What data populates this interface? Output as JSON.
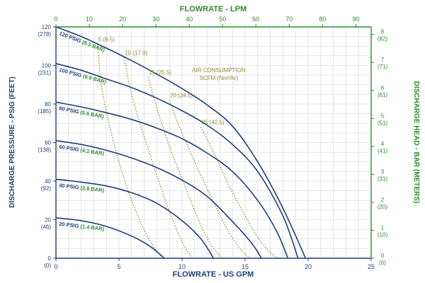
{
  "colors": {
    "navy": "#1f3f7a",
    "green": "#2e8b2e",
    "olive": "#8c8a2e",
    "grid": "#cfd3da",
    "axis": "#1f3f7a"
  },
  "chart_data": {
    "type": "line",
    "title": "",
    "x_bottom": {
      "label": "FLOWRATE - US GPM",
      "range": [
        0,
        25
      ],
      "ticks": [
        0,
        5,
        10,
        15,
        20,
        25
      ]
    },
    "x_top": {
      "label": "FLOWRATE - LPM",
      "range": [
        0,
        94.6
      ],
      "ticks": [
        0,
        10,
        20,
        30,
        40,
        50,
        60,
        70,
        80,
        90
      ]
    },
    "y_left": {
      "label": "DISCHARGE PRESSURE - PSIG (FEET)",
      "range": [
        0,
        120
      ],
      "ticks": [
        0,
        20,
        40,
        60,
        80,
        100,
        120
      ],
      "secondary_labels": [
        "(0)",
        "(46)",
        "(92)",
        "(138)",
        "(185)",
        "(231)",
        "(278)"
      ]
    },
    "y_right": {
      "label": "DISCHARGE HEAD - BAR (METERS)",
      "range": [
        0,
        8.27
      ],
      "ticks": [
        0,
        1,
        2,
        3,
        4,
        5,
        6,
        7,
        8
      ],
      "secondary_labels": [
        "(0)",
        "(10)",
        "(20)",
        "(31)",
        "(41)",
        "(51)",
        "(61)",
        "(71)",
        "(82)"
      ]
    },
    "grid": true,
    "series": [
      {
        "name": "20 PSIG (1.4 BAR)",
        "psig": "20 PSIG",
        "bar": "(1.4 BAR)",
        "x": [
          0,
          2,
          4,
          6,
          7.5,
          8.6
        ],
        "y": [
          21,
          19.5,
          16.5,
          11.5,
          6,
          0
        ]
      },
      {
        "name": "40 PSIG (2.8 BAR)",
        "psig": "40 PSIG",
        "bar": "(2.8 BAR)",
        "x": [
          0,
          2,
          4,
          6,
          8,
          10,
          11.5,
          12.5
        ],
        "y": [
          41,
          39.5,
          37.5,
          34,
          28.5,
          19.5,
          10,
          0
        ]
      },
      {
        "name": "60 PSIG (4.1 BAR)",
        "psig": "60 PSIG",
        "bar": "(4.1 BAR)",
        "x": [
          0,
          2,
          4,
          6,
          8,
          10,
          12,
          14,
          15.5,
          16.3
        ],
        "y": [
          61,
          59,
          56,
          52,
          47,
          40.5,
          32,
          19,
          8,
          0
        ]
      },
      {
        "name": "80 PSIG (5.5 BAR)",
        "psig": "80 PSIG",
        "bar": "(5.5 BAR)",
        "x": [
          0,
          2,
          4,
          6,
          8,
          10,
          12,
          14,
          16,
          17.5,
          18.4
        ],
        "y": [
          81,
          78.5,
          75.5,
          72,
          67.5,
          62,
          54.5,
          45,
          30,
          14,
          0
        ]
      },
      {
        "name": "100 PSIG (6.9 BAR)",
        "psig": "100 PSIG",
        "bar": "(6.9 BAR)",
        "x": [
          0,
          2,
          4,
          6,
          8,
          10,
          12,
          14,
          16,
          18,
          19.2
        ],
        "y": [
          101,
          97.5,
          93,
          88.5,
          83,
          76.5,
          69,
          59,
          45,
          22,
          0
        ]
      },
      {
        "name": "120 PSIG (8.3 BAR)",
        "psig": "120 PSIG",
        "bar": "(8.3 BAR)",
        "x": [
          0,
          2,
          4,
          6,
          8,
          10,
          12,
          14,
          16,
          18,
          19.8
        ],
        "y": [
          120,
          115,
          109,
          102.5,
          95.5,
          88,
          79.5,
          68.5,
          50,
          26,
          0
        ]
      }
    ],
    "air_consumption": {
      "title": "AIR CONSUMPTION",
      "units": "SCFM (Nm³/hr)",
      "series": [
        {
          "name": "5 (8.5)",
          "x": [
            3.3,
            3.6,
            4.2,
            5.0,
            6.0,
            7.2,
            8.4
          ],
          "y": [
            111,
            90,
            70,
            50,
            30,
            12,
            0
          ]
        },
        {
          "name": "10 (17.0)",
          "x": [
            5.4,
            6.0,
            6.9,
            7.9,
            8.9,
            9.9,
            10.8
          ],
          "y": [
            104,
            85,
            65,
            45,
            26,
            10,
            0
          ]
        },
        {
          "name": "15 (25.5)",
          "x": [
            7.3,
            8.0,
            9.0,
            10.2,
            11.3,
            12.3,
            13.2
          ],
          "y": [
            94,
            78,
            58,
            38,
            20,
            7,
            0
          ]
        },
        {
          "name": "20 (34.0)",
          "x": [
            9.0,
            9.8,
            11.0,
            12.3,
            13.5,
            14.6,
            15.4
          ],
          "y": [
            82,
            68,
            50,
            32,
            16,
            5,
            0
          ]
        },
        {
          "name": "25 (42.5)",
          "x": [
            11.5,
            12.5,
            13.7,
            15.0,
            16.1,
            17.0,
            17.6
          ],
          "y": [
            68,
            55,
            38,
            22,
            10,
            3,
            0
          ]
        }
      ]
    }
  }
}
